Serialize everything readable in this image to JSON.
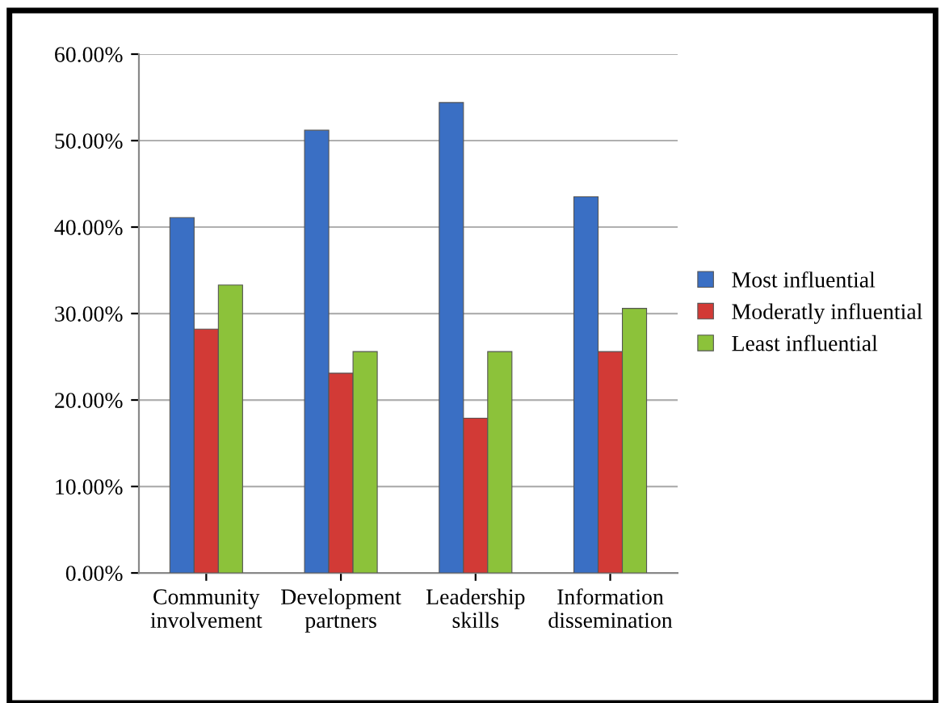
{
  "chart_data": {
    "type": "bar",
    "categories": [
      "Community\ninvolvement",
      "Development\npartners",
      "Leadership\nskills",
      "Information\ndissemination"
    ],
    "series": [
      {
        "name": "Most influential",
        "color": "#3a6fc4",
        "values": [
          41.1,
          51.2,
          54.4,
          43.5
        ]
      },
      {
        "name": "Moderatly influential",
        "color": "#d23a36",
        "values": [
          28.2,
          23.1,
          17.9,
          25.6
        ]
      },
      {
        "name": "Least influential",
        "color": "#8cc23a",
        "values": [
          33.3,
          25.6,
          25.6,
          30.6
        ]
      }
    ],
    "ylim": [
      0,
      60
    ],
    "yticks": [
      {
        "value": 0,
        "label": "0.00%"
      },
      {
        "value": 10,
        "label": "10.00%"
      },
      {
        "value": 20,
        "label": "20.00%"
      },
      {
        "value": 30,
        "label": "30.00%"
      },
      {
        "value": 40,
        "label": "40.00%"
      },
      {
        "value": 50,
        "label": "50.00%"
      },
      {
        "value": 60,
        "label": "60.00%"
      }
    ],
    "grid": "y",
    "legend": "right"
  }
}
